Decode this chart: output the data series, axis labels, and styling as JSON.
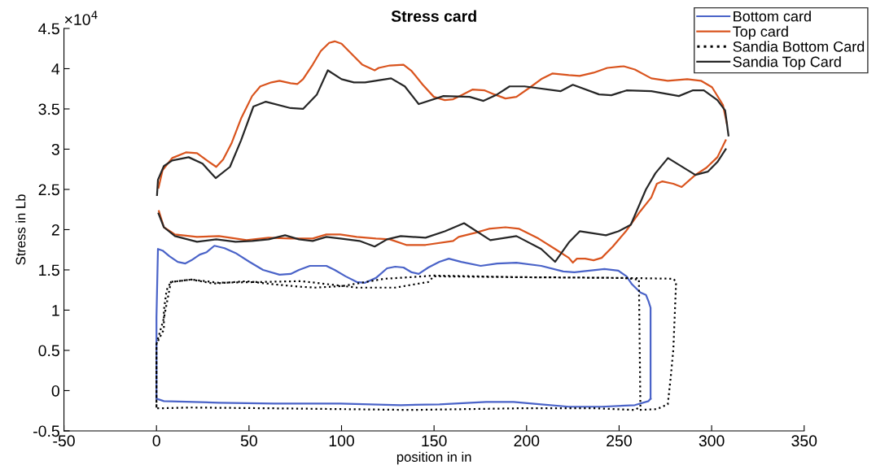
{
  "chart_data": {
    "type": "line",
    "title": "Stress card",
    "xlabel": "position in in",
    "ylabel": "Stress in Lb",
    "annotations": [
      "×10$^{4}$"
    ],
    "xlim": [
      -50,
      350
    ],
    "xticks": [
      -50,
      0,
      50,
      100,
      150,
      200,
      250,
      300,
      350
    ],
    "ylim": [
      -0.5,
      4.5
    ],
    "yticks": [
      -0.5,
      0,
      0.5,
      1,
      1.5,
      2,
      2.5,
      3,
      3.5,
      4,
      4.5
    ],
    "grid": false,
    "legend": "top right",
    "marker": "none",
    "series": [
      {
        "name": "Bottom card",
        "color": "#4a63c8",
        "line_style": "solid",
        "x": [
          0,
          0,
          0.8,
          3.3,
          7,
          11.5,
          15.6,
          18.9,
          23.4,
          27.1,
          31.3,
          36.8,
          42.7,
          50.2,
          57.6,
          66.5,
          72.5,
          77,
          82.9,
          91.8,
          96.3,
          102.2,
          108.2,
          112.7,
          118.6,
          124.6,
          129,
          133.5,
          137.9,
          141.7,
          146.9,
          152.9,
          158,
          164.7,
          175.2,
          184.1,
          194.5,
          207.9,
          219.8,
          225.8,
          242.1,
          249.6,
          254,
          257,
          261.5,
          264.5,
          265.9,
          267,
          267
        ],
        "values": [
          -0.1,
          0.91,
          1.76,
          1.74,
          1.67,
          1.6,
          1.58,
          1.62,
          1.69,
          1.72,
          1.8,
          1.77,
          1.71,
          1.6,
          1.5,
          1.44,
          1.45,
          1.5,
          1.55,
          1.55,
          1.5,
          1.42,
          1.35,
          1.34,
          1.4,
          1.52,
          1.54,
          1.53,
          1.47,
          1.45,
          1.53,
          1.6,
          1.64,
          1.6,
          1.55,
          1.58,
          1.59,
          1.55,
          1.48,
          1.47,
          1.51,
          1.49,
          1.42,
          1.32,
          1.22,
          1.19,
          1.11,
          1.03,
          -0.1
        ]
      },
      {
        "color": "#4a63c8",
        "line_style": "solid",
        "x": [
          0,
          4,
          33.8,
          63.6,
          99.3,
          132,
          152.9,
          178.1,
          193,
          207.9,
          222.8,
          240.6,
          258.5,
          265.9,
          267
        ],
        "values": [
          -0.1,
          -0.13,
          -0.15,
          -0.16,
          -0.16,
          -0.18,
          -0.17,
          -0.14,
          -0.14,
          -0.17,
          -0.2,
          -0.2,
          -0.18,
          -0.13,
          -0.1
        ]
      },
      {
        "name": "Top card",
        "color": "#d9541e",
        "line_style": "solid",
        "x": [
          1.1,
          3.3,
          8.5,
          15.9,
          21.9,
          27.9,
          32.3,
          36,
          40.5,
          45.7,
          51.7,
          56.1,
          62.1,
          66.5,
          72.5,
          76.2,
          79.2,
          84.4,
          88.8,
          93.3,
          96.3,
          100,
          105.2,
          111.2,
          117.9,
          120.1,
          126.1,
          133.5,
          137.9,
          143.9,
          149.9,
          155.8,
          160.3,
          164.7,
          170.7,
          177.4,
          182.6,
          188.6,
          194.5,
          202,
          207.9,
          213.9,
          222.8,
          228.7,
          236.2,
          243.6,
          252.5,
          258.5,
          267.4,
          276.3,
          286.8,
          294.2,
          300.2,
          306.1,
          308.3
        ],
        "values": [
          2.52,
          2.74,
          2.89,
          2.96,
          2.95,
          2.85,
          2.78,
          2.87,
          3.07,
          3.38,
          3.66,
          3.78,
          3.83,
          3.85,
          3.82,
          3.81,
          3.87,
          4.05,
          4.22,
          4.32,
          4.34,
          4.31,
          4.19,
          4.05,
          3.98,
          4.01,
          4.04,
          4.05,
          3.97,
          3.8,
          3.65,
          3.61,
          3.62,
          3.67,
          3.74,
          3.73,
          3.68,
          3.63,
          3.65,
          3.77,
          3.87,
          3.94,
          3.92,
          3.91,
          3.95,
          4.01,
          4.03,
          3.99,
          3.88,
          3.85,
          3.87,
          3.85,
          3.77,
          3.55,
          3.31
        ]
      },
      {
        "color": "#d9541e",
        "line_style": "solid",
        "x": [
          1.3,
          4,
          10,
          21.9,
          33.8,
          48.7,
          60.6,
          72.5,
          84.4,
          91.8,
          99.3,
          108.2,
          118.6,
          126.1,
          135,
          145.4,
          160.3,
          163.3,
          172.2,
          179.6,
          188.6,
          196,
          206.4,
          215.4,
          222.8,
          225,
          227.2,
          231.7,
          236.2,
          240.6,
          246.6,
          254,
          261.5,
          267.4,
          270.4,
          273.4,
          279.3,
          283.8,
          291.2,
          297.2,
          303.1,
          307.6
        ],
        "values": [
          2.23,
          2.03,
          1.94,
          1.91,
          1.92,
          1.87,
          1.9,
          1.89,
          1.89,
          1.94,
          1.94,
          1.91,
          1.89,
          1.88,
          1.81,
          1.81,
          1.86,
          1.91,
          1.96,
          2.01,
          2.03,
          2.01,
          1.89,
          1.76,
          1.65,
          1.59,
          1.64,
          1.64,
          1.62,
          1.65,
          1.79,
          1.99,
          2.23,
          2.4,
          2.57,
          2.6,
          2.57,
          2.53,
          2.68,
          2.77,
          2.9,
          3.11
        ]
      },
      {
        "name": "Sandia Bottom Card",
        "color": "#000000",
        "line_style": "dotted",
        "x": [
          0,
          0,
          4,
          4,
          5.5,
          7.8,
          18.9,
          30.8,
          48.7,
          63.6,
          78.4,
          85.9,
          100.8,
          108.2,
          123.1,
          137.9,
          149.9,
          194.5,
          252.5,
          260.7,
          261.5,
          258.5,
          237.7,
          194.5,
          137.9,
          63.6,
          18.9,
          0,
          0,
          4,
          7.8,
          18.9,
          33.8,
          78.4,
          93.3,
          108.2,
          129,
          146.9,
          149.9,
          194.5,
          252.5,
          279.3,
          280.8,
          279.3,
          277.9,
          276.3,
          270.4,
          260
        ],
        "values": [
          -0.21,
          0.58,
          0.76,
          1.0,
          1.25,
          1.35,
          1.38,
          1.33,
          1.36,
          1.32,
          1.29,
          1.28,
          1.3,
          1.33,
          1.39,
          1.41,
          1.43,
          1.41,
          1.4,
          1.38,
          -0.2,
          -0.24,
          -0.22,
          -0.22,
          -0.24,
          -0.22,
          -0.21,
          -0.22,
          0.58,
          0.9,
          1.35,
          1.38,
          1.34,
          1.36,
          1.32,
          1.28,
          1.28,
          1.35,
          1.42,
          1.41,
          1.4,
          1.39,
          1.35,
          0.51,
          0.17,
          -0.17,
          -0.23,
          -0.24
        ]
      },
      {
        "name": "Sandia Top Card",
        "color": "#262626",
        "line_style": "solid",
        "x": [
          0.3,
          0.8,
          4,
          8.5,
          17.4,
          24.9,
          32,
          39.7,
          45.7,
          52.4,
          59.1,
          72.5,
          79.2,
          86.7,
          92.6,
          100,
          106.7,
          112.7,
          126.8,
          134.2,
          141.7,
          155.1,
          169.2,
          176.7,
          184.1,
          190.8,
          198.9,
          218.3,
          225,
          239.2,
          245.8,
          254,
          267.4,
          282.3,
          289.7,
          295.8,
          303.1,
          307.3,
          309.1
        ],
        "values": [
          2.43,
          2.62,
          2.79,
          2.86,
          2.9,
          2.82,
          2.64,
          2.78,
          3.11,
          3.53,
          3.59,
          3.51,
          3.5,
          3.68,
          3.98,
          3.87,
          3.83,
          3.83,
          3.88,
          3.78,
          3.56,
          3.66,
          3.65,
          3.6,
          3.68,
          3.78,
          3.78,
          3.72,
          3.8,
          3.68,
          3.67,
          3.73,
          3.72,
          3.66,
          3.73,
          3.73,
          3.61,
          3.48,
          3.17
        ]
      },
      {
        "color": "#262626",
        "line_style": "solid",
        "x": [
          1.1,
          4,
          10,
          21.9,
          32.3,
          42.7,
          51.7,
          60.6,
          69.5,
          77,
          84.4,
          91.8,
          99.3,
          109.7,
          117.9,
          124.6,
          132,
          145.4,
          155.8,
          166.2,
          180.4,
          194.5,
          207.9,
          215.4,
          222.8,
          228.7,
          242.9,
          249.6,
          256.3,
          264.5,
          269.6,
          276.4,
          291.2,
          297.9,
          303.1,
          307.6
        ],
        "values": [
          2.2,
          2.03,
          1.92,
          1.85,
          1.88,
          1.85,
          1.86,
          1.88,
          1.93,
          1.88,
          1.86,
          1.91,
          1.89,
          1.86,
          1.79,
          1.88,
          1.92,
          1.9,
          1.98,
          2.08,
          1.87,
          1.92,
          1.76,
          1.6,
          1.84,
          1.98,
          1.93,
          1.98,
          2.06,
          2.5,
          2.7,
          2.89,
          2.68,
          2.72,
          2.84,
          3.0
        ]
      }
    ]
  }
}
